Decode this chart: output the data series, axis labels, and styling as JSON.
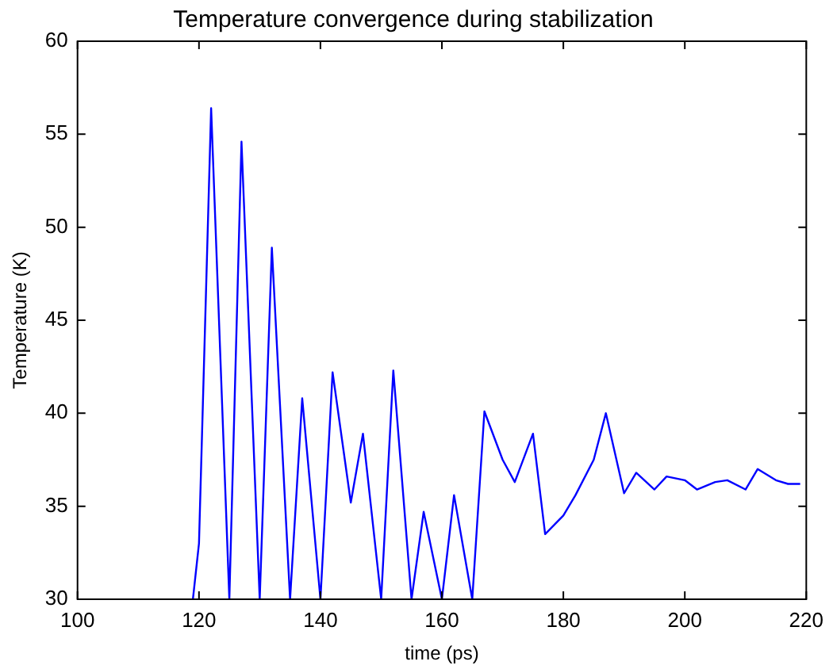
{
  "chart_data": {
    "type": "line",
    "title": "Temperature convergence during stabilization",
    "xlabel": "time (ps)",
    "ylabel": "Temperature (K)",
    "x": [
      119,
      120,
      122,
      125,
      127,
      130,
      132,
      135,
      137,
      140,
      142,
      145,
      147,
      150,
      152,
      155,
      157,
      160,
      162,
      165,
      167,
      170,
      172,
      175,
      177,
      180,
      182,
      185,
      187,
      190,
      192,
      195,
      197,
      200,
      202,
      205,
      207,
      210,
      212,
      215,
      217,
      219
    ],
    "series": [
      {
        "color": "#0000ff",
        "values": [
          30,
          33,
          56.4,
          30,
          54.6,
          30,
          48.9,
          30,
          40.8,
          30,
          42.2,
          35.2,
          38.9,
          30,
          42.3,
          30,
          34.7,
          30,
          35.6,
          30,
          40.1,
          37.5,
          36.3,
          38.9,
          33.5,
          34.5,
          35.6,
          37.5,
          40,
          35.7,
          36.8,
          35.9,
          36.6,
          36.4,
          35.9,
          36.3,
          36.4,
          35.9,
          37,
          36.4,
          36.2,
          36.2
        ]
      }
    ],
    "xlim": [
      100,
      220
    ],
    "xticks": [
      100,
      120,
      140,
      160,
      180,
      200,
      220
    ],
    "ylim": [
      30,
      60
    ],
    "yticks": [
      30,
      35,
      40,
      45,
      50,
      55,
      60
    ],
    "grid": false,
    "legend": false,
    "marker": "none",
    "line_style": "solid"
  }
}
